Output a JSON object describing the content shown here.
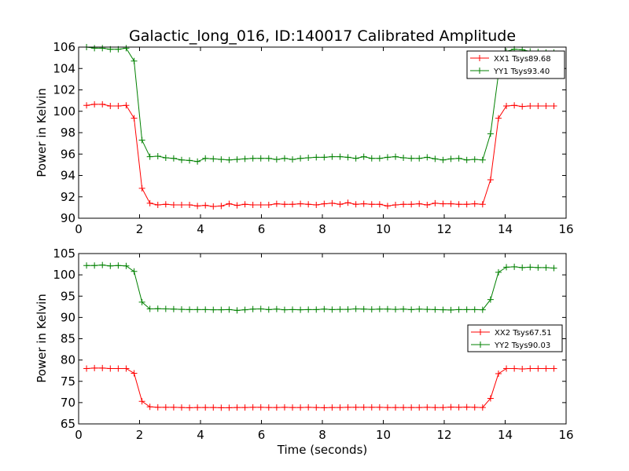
{
  "figure": {
    "title": "Galactic_long_016, ID:140017 Calibrated Amplitude"
  },
  "chart_data": [
    {
      "type": "line",
      "title": "Galactic_long_016, ID:140017 Calibrated Amplitude",
      "xlabel": "",
      "ylabel": "Power in Kelvin",
      "xlim": [
        0,
        16
      ],
      "ylim": [
        90,
        106
      ],
      "x_ticks": [
        "0",
        "2",
        "4",
        "6",
        "8",
        "10",
        "12",
        "14",
        "16"
      ],
      "y_ticks": [
        "90",
        "92",
        "94",
        "96",
        "98",
        "100",
        "102",
        "104",
        "106"
      ],
      "grid": false,
      "legend_position": "top-right",
      "x": [
        0.26,
        0.52,
        0.78,
        1.04,
        1.3,
        1.56,
        1.82,
        2.08,
        2.34,
        2.6,
        2.86,
        3.12,
        3.38,
        3.64,
        3.9,
        4.16,
        4.42,
        4.68,
        4.94,
        5.2,
        5.46,
        5.72,
        5.98,
        6.24,
        6.5,
        6.76,
        7.02,
        7.28,
        7.54,
        7.8,
        8.06,
        8.32,
        8.58,
        8.84,
        9.1,
        9.36,
        9.62,
        9.88,
        10.14,
        10.4,
        10.66,
        10.92,
        11.18,
        11.44,
        11.7,
        11.96,
        12.22,
        12.48,
        12.74,
        13.0,
        13.26,
        13.52,
        13.78,
        14.04,
        14.3,
        14.56,
        14.82,
        15.08,
        15.34,
        15.6
      ],
      "series": [
        {
          "name": "XX1 Tsys89.68",
          "color": "#ff0000",
          "values": [
            100.55,
            100.65,
            100.65,
            100.5,
            100.5,
            100.55,
            99.35,
            92.8,
            91.4,
            91.25,
            91.3,
            91.25,
            91.25,
            91.25,
            91.15,
            91.2,
            91.1,
            91.15,
            91.35,
            91.2,
            91.3,
            91.25,
            91.25,
            91.25,
            91.35,
            91.3,
            91.3,
            91.35,
            91.3,
            91.25,
            91.35,
            91.4,
            91.3,
            91.45,
            91.3,
            91.35,
            91.3,
            91.3,
            91.15,
            91.25,
            91.3,
            91.3,
            91.35,
            91.25,
            91.4,
            91.35,
            91.35,
            91.3,
            91.3,
            91.35,
            91.3,
            93.6,
            99.35,
            100.5,
            100.55,
            100.45,
            100.5,
            100.5,
            100.5,
            100.5
          ]
        },
        {
          "name": "YY1 Tsys93.40",
          "color": "#008000",
          "values": [
            106.0,
            105.9,
            105.9,
            105.8,
            105.8,
            105.9,
            104.7,
            97.3,
            95.75,
            95.8,
            95.65,
            95.6,
            95.45,
            95.4,
            95.3,
            95.6,
            95.55,
            95.5,
            95.45,
            95.5,
            95.55,
            95.6,
            95.6,
            95.6,
            95.5,
            95.6,
            95.5,
            95.6,
            95.65,
            95.7,
            95.7,
            95.75,
            95.75,
            95.7,
            95.6,
            95.75,
            95.6,
            95.6,
            95.7,
            95.75,
            95.65,
            95.6,
            95.6,
            95.7,
            95.55,
            95.45,
            95.55,
            95.6,
            95.45,
            95.5,
            95.45,
            97.9,
            103.5,
            105.6,
            105.8,
            105.75,
            105.6,
            105.55,
            105.5,
            105.5
          ]
        }
      ]
    },
    {
      "type": "line",
      "title": "",
      "xlabel": "Time (seconds)",
      "ylabel": "Power in Kelvin",
      "xlim": [
        0,
        16
      ],
      "ylim": [
        65,
        105
      ],
      "x_ticks": [
        "0",
        "2",
        "4",
        "6",
        "8",
        "10",
        "12",
        "14",
        "16"
      ],
      "y_ticks": [
        "65",
        "70",
        "75",
        "80",
        "85",
        "90",
        "95",
        "100",
        "105"
      ],
      "grid": false,
      "legend_position": "center-right",
      "x": [
        0.26,
        0.52,
        0.78,
        1.04,
        1.3,
        1.56,
        1.82,
        2.08,
        2.34,
        2.6,
        2.86,
        3.12,
        3.38,
        3.64,
        3.9,
        4.16,
        4.42,
        4.68,
        4.94,
        5.2,
        5.46,
        5.72,
        5.98,
        6.24,
        6.5,
        6.76,
        7.02,
        7.28,
        7.54,
        7.8,
        8.06,
        8.32,
        8.58,
        8.84,
        9.1,
        9.36,
        9.62,
        9.88,
        10.14,
        10.4,
        10.66,
        10.92,
        11.18,
        11.44,
        11.7,
        11.96,
        12.22,
        12.48,
        12.74,
        13.0,
        13.26,
        13.52,
        13.78,
        14.04,
        14.3,
        14.56,
        14.82,
        15.08,
        15.34,
        15.6
      ],
      "series": [
        {
          "name": "XX2 Tsys67.51",
          "color": "#ff0000",
          "values": [
            78.0,
            78.1,
            78.1,
            78.0,
            78.0,
            78.0,
            76.9,
            70.3,
            69.0,
            68.9,
            68.9,
            68.9,
            68.85,
            68.8,
            68.85,
            68.85,
            68.85,
            68.8,
            68.8,
            68.85,
            68.85,
            68.9,
            68.9,
            68.85,
            68.85,
            68.9,
            68.85,
            68.85,
            68.9,
            68.85,
            68.8,
            68.85,
            68.85,
            68.9,
            68.9,
            68.9,
            68.9,
            68.9,
            68.85,
            68.85,
            68.85,
            68.85,
            68.85,
            68.9,
            68.85,
            68.85,
            68.95,
            68.9,
            68.95,
            68.9,
            68.85,
            71.0,
            76.8,
            78.0,
            78.0,
            77.9,
            78.0,
            78.0,
            78.0,
            78.0
          ]
        },
        {
          "name": "YY2 Tsys90.03",
          "color": "#008000",
          "values": [
            102.2,
            102.2,
            102.3,
            102.1,
            102.2,
            102.1,
            100.8,
            93.6,
            92.0,
            92.05,
            92.0,
            91.95,
            91.9,
            91.85,
            91.85,
            91.85,
            91.8,
            91.8,
            91.85,
            91.65,
            91.8,
            91.95,
            92.0,
            91.85,
            91.95,
            91.8,
            91.85,
            91.8,
            91.85,
            91.85,
            91.95,
            91.85,
            91.9,
            91.9,
            92.0,
            91.95,
            91.9,
            91.95,
            91.95,
            91.9,
            91.95,
            91.85,
            91.95,
            91.9,
            91.85,
            91.8,
            91.75,
            91.85,
            91.85,
            91.85,
            91.8,
            94.2,
            100.6,
            101.8,
            101.9,
            101.7,
            101.8,
            101.7,
            101.7,
            101.6
          ]
        }
      ]
    }
  ]
}
